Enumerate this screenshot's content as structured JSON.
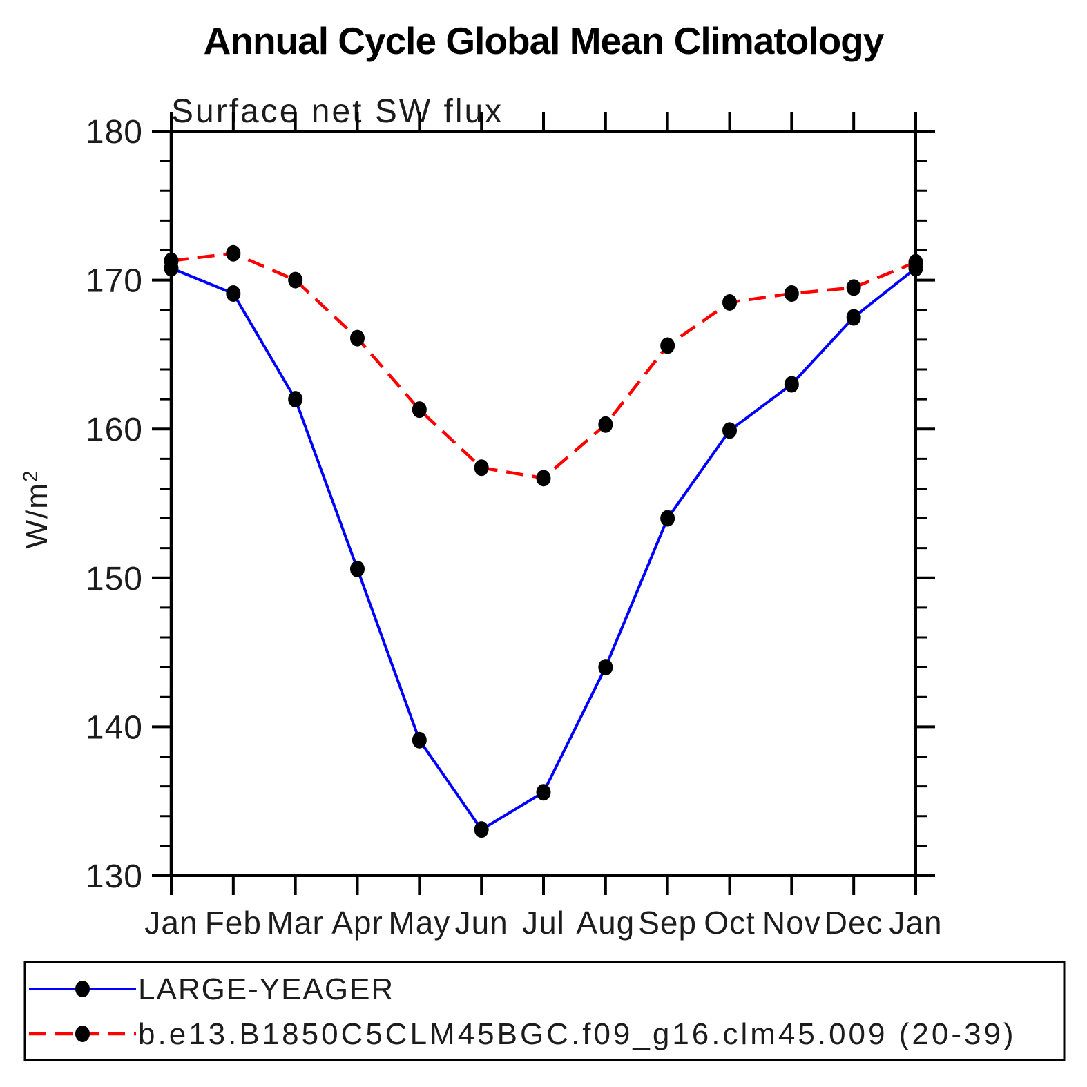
{
  "page": {
    "background": "#ffffff"
  },
  "chart_data": {
    "type": "line",
    "title": "Annual Cycle Global Mean Climatology",
    "subtitle": "Surface net SW flux",
    "ylabel": "W/m²",
    "xlabel": "",
    "categories": [
      "Jan",
      "Feb",
      "Mar",
      "Apr",
      "May",
      "Jun",
      "Jul",
      "Aug",
      "Sep",
      "Oct",
      "Nov",
      "Dec",
      "Jan"
    ],
    "ylim": [
      130,
      180
    ],
    "ytick_major_step": 10,
    "ytick_minor_step": 2,
    "grid": false,
    "legend_position": "bottom-box",
    "axis_color": "#000000",
    "marker_color": "#000000",
    "series": [
      {
        "name": "LARGE-YEAGER",
        "color": "#0000ff",
        "line_style": "solid",
        "values": [
          170.8,
          169.1,
          162.0,
          150.6,
          139.1,
          133.1,
          135.6,
          144.0,
          154.0,
          159.9,
          163.0,
          167.5,
          170.8
        ]
      },
      {
        "name": "b.e13.B1850C5CLM45BGC.f09_g16.clm45.009 (20-39)",
        "color": "#ff0000",
        "line_style": "dashed",
        "values": [
          171.3,
          171.8,
          170.0,
          166.1,
          161.3,
          157.4,
          156.7,
          160.3,
          165.6,
          168.5,
          169.1,
          169.5,
          171.2
        ]
      }
    ]
  }
}
